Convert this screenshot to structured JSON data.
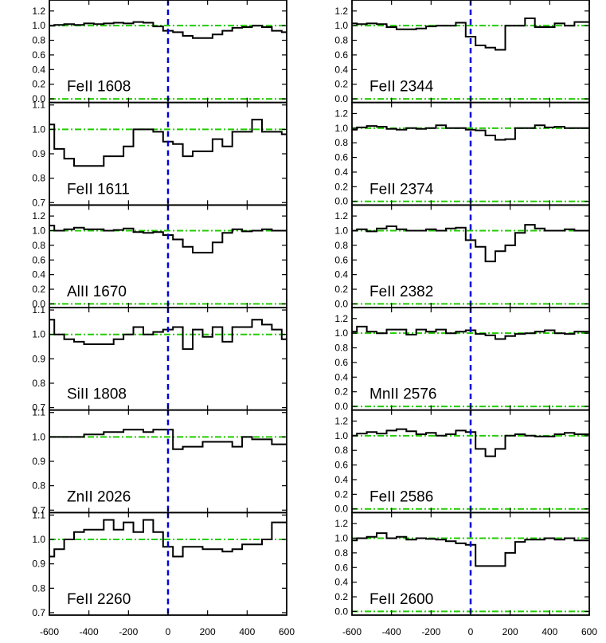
{
  "colors": {
    "data_line": "#000000",
    "axes": "#000000",
    "continuum_line": "#22cc00",
    "zero_velocity_line": "#0000dd"
  },
  "chart_data": {
    "type": "line",
    "layout": "2 columns x 6 rows of stacked panels",
    "line_style": "step",
    "xlim": [
      -600,
      600
    ],
    "x_ticks": [
      "-600",
      "-400",
      "-200",
      "0",
      "200",
      "400",
      "600"
    ],
    "reference_lines": {
      "vertical_dashed_x": 0,
      "horizontal_dash_dot_y": [
        0.0,
        1.0
      ]
    },
    "panels": [
      {
        "label": "FeII 1608",
        "column": "left",
        "ylim": [
          -0.05,
          1.35
        ],
        "y_ticks": [
          "0.0",
          "0.2",
          "0.4",
          "0.6",
          "0.8",
          "1.0",
          "1.2"
        ],
        "x": [
          -600,
          -550,
          -500,
          -450,
          -400,
          -350,
          -300,
          -250,
          -200,
          -150,
          -100,
          -50,
          0,
          50,
          100,
          150,
          200,
          250,
          300,
          350,
          400,
          450,
          500,
          550,
          600
        ],
        "y": [
          1.0,
          1.01,
          1.02,
          1.01,
          1.03,
          1.02,
          1.03,
          1.04,
          1.03,
          1.05,
          1.04,
          0.99,
          0.93,
          0.91,
          0.86,
          0.83,
          0.83,
          0.88,
          0.93,
          0.97,
          0.98,
          1.0,
          0.98,
          0.93,
          0.91
        ]
      },
      {
        "label": "FeII 1611",
        "column": "left",
        "ylim": [
          0.69,
          1.11
        ],
        "y_ticks": [
          "0.7",
          "0.8",
          "0.9",
          "1.0",
          "1.1"
        ],
        "x": [
          -600,
          -550,
          -500,
          -450,
          -400,
          -350,
          -300,
          -250,
          -200,
          -150,
          -100,
          -50,
          0,
          50,
          100,
          150,
          200,
          250,
          300,
          350,
          400,
          450,
          500,
          550,
          600
        ],
        "y": [
          1.02,
          0.92,
          0.88,
          0.85,
          0.85,
          0.85,
          0.89,
          0.89,
          0.93,
          1.0,
          1.0,
          0.99,
          0.95,
          0.94,
          0.89,
          0.91,
          0.91,
          0.96,
          0.93,
          0.99,
          0.99,
          1.04,
          0.99,
          0.99,
          0.98
        ]
      },
      {
        "label": "AlII 1670",
        "column": "left",
        "ylim": [
          -0.05,
          1.35
        ],
        "y_ticks": [
          "0.0",
          "0.2",
          "0.4",
          "0.6",
          "0.8",
          "1.0",
          "1.2"
        ],
        "x": [
          -600,
          -550,
          -500,
          -450,
          -400,
          -350,
          -300,
          -250,
          -200,
          -150,
          -100,
          -50,
          0,
          50,
          100,
          150,
          200,
          250,
          300,
          350,
          400,
          450,
          500,
          550,
          600
        ],
        "y": [
          1.07,
          1.0,
          1.02,
          1.04,
          1.02,
          1.02,
          1.0,
          1.01,
          1.03,
          0.98,
          0.97,
          0.98,
          0.94,
          0.88,
          0.78,
          0.7,
          0.7,
          0.84,
          0.97,
          1.02,
          0.99,
          1.0,
          1.02,
          1.0,
          1.0
        ]
      },
      {
        "label": "SiII 1808",
        "column": "left",
        "ylim": [
          0.69,
          1.11
        ],
        "y_ticks": [
          "0.7",
          "0.8",
          "0.9",
          "1.0",
          "1.1"
        ],
        "x": [
          -600,
          -550,
          -500,
          -450,
          -400,
          -350,
          -300,
          -250,
          -200,
          -150,
          -100,
          -50,
          0,
          50,
          100,
          150,
          200,
          250,
          300,
          350,
          400,
          450,
          500,
          550,
          600
        ],
        "y": [
          1.06,
          1.0,
          0.98,
          0.97,
          0.96,
          0.96,
          0.96,
          0.98,
          1.0,
          1.03,
          1.0,
          1.01,
          1.02,
          1.03,
          0.94,
          1.02,
          0.99,
          1.03,
          0.97,
          1.03,
          1.03,
          1.06,
          1.04,
          1.02,
          0.98
        ]
      },
      {
        "label": "ZnII 2026",
        "column": "left",
        "ylim": [
          0.69,
          1.11
        ],
        "y_ticks": [
          "0.7",
          "0.8",
          "0.9",
          "1.0",
          "1.1"
        ],
        "x": [
          -600,
          -550,
          -500,
          -450,
          -400,
          -350,
          -300,
          -250,
          -200,
          -150,
          -100,
          -50,
          0,
          50,
          100,
          150,
          200,
          250,
          300,
          350,
          400,
          450,
          500,
          550,
          600
        ],
        "y": [
          1.0,
          1.0,
          1.0,
          1.0,
          1.01,
          1.01,
          1.02,
          1.02,
          1.03,
          1.03,
          1.02,
          1.03,
          1.03,
          0.95,
          0.96,
          0.96,
          0.98,
          0.98,
          0.98,
          0.96,
          1.0,
          0.99,
          0.99,
          0.97,
          0.97
        ]
      },
      {
        "label": "FeII 2260",
        "column": "left",
        "ylim": [
          0.69,
          1.11
        ],
        "y_ticks": [
          "0.7",
          "0.8",
          "0.9",
          "1.0",
          "1.1"
        ],
        "x": [
          -600,
          -550,
          -500,
          -450,
          -400,
          -350,
          -300,
          -250,
          -200,
          -150,
          -100,
          -50,
          0,
          50,
          100,
          150,
          200,
          250,
          300,
          350,
          400,
          450,
          500,
          550,
          600
        ],
        "y": [
          0.93,
          0.96,
          1.0,
          1.03,
          1.04,
          1.04,
          1.08,
          1.04,
          1.07,
          1.03,
          1.08,
          1.03,
          0.97,
          0.93,
          0.97,
          0.97,
          0.96,
          0.96,
          0.95,
          0.96,
          0.98,
          0.98,
          1.0,
          1.07,
          1.07
        ]
      },
      {
        "label": "FeII 2344",
        "column": "right",
        "ylim": [
          -0.05,
          1.35
        ],
        "y_ticks": [
          "0.0",
          "0.2",
          "0.4",
          "0.6",
          "0.8",
          "1.0",
          "1.2"
        ],
        "x": [
          -600,
          -550,
          -500,
          -450,
          -400,
          -350,
          -300,
          -250,
          -200,
          -150,
          -100,
          -50,
          0,
          50,
          100,
          150,
          200,
          250,
          300,
          350,
          400,
          450,
          500,
          550,
          600
        ],
        "y": [
          1.03,
          1.02,
          1.03,
          1.02,
          0.98,
          0.95,
          0.95,
          0.96,
          0.99,
          1.0,
          1.0,
          1.04,
          0.85,
          0.73,
          0.7,
          0.67,
          1.0,
          1.0,
          1.1,
          0.98,
          0.98,
          1.03,
          1.0,
          1.05,
          1.05
        ]
      },
      {
        "label": "FeII 2374",
        "column": "right",
        "ylim": [
          -0.05,
          1.35
        ],
        "y_ticks": [
          "0.0",
          "0.2",
          "0.4",
          "0.6",
          "0.8",
          "1.0",
          "1.2"
        ],
        "x": [
          -600,
          -550,
          -500,
          -450,
          -400,
          -350,
          -300,
          -250,
          -200,
          -150,
          -100,
          -50,
          0,
          50,
          100,
          150,
          200,
          250,
          300,
          350,
          400,
          450,
          500,
          550,
          600
        ],
        "y": [
          0.98,
          1.01,
          1.03,
          1.02,
          0.99,
          0.98,
          1.0,
          0.99,
          1.0,
          1.04,
          1.0,
          1.0,
          0.98,
          0.97,
          0.9,
          0.84,
          0.85,
          1.0,
          1.0,
          1.04,
          1.01,
          1.02,
          1.0,
          1.0,
          1.0
        ]
      },
      {
        "label": "FeII 2382",
        "column": "right",
        "ylim": [
          -0.05,
          1.35
        ],
        "y_ticks": [
          "0.0",
          "0.2",
          "0.4",
          "0.6",
          "0.8",
          "1.0",
          "1.2"
        ],
        "x": [
          -600,
          -550,
          -500,
          -450,
          -400,
          -350,
          -300,
          -250,
          -200,
          -150,
          -100,
          -50,
          0,
          50,
          100,
          150,
          200,
          250,
          300,
          350,
          400,
          450,
          500,
          550,
          600
        ],
        "y": [
          1.0,
          1.02,
          0.99,
          1.03,
          1.06,
          1.02,
          1.0,
          1.0,
          1.02,
          1.0,
          1.03,
          1.04,
          0.87,
          0.78,
          0.58,
          0.72,
          0.8,
          0.97,
          1.08,
          1.03,
          1.0,
          1.0,
          1.02,
          1.0,
          1.0
        ]
      },
      {
        "label": "MnII 2576",
        "column": "right",
        "ylim": [
          -0.05,
          1.35
        ],
        "y_ticks": [
          "0.0",
          "0.2",
          "0.4",
          "0.6",
          "0.8",
          "1.0",
          "1.2"
        ],
        "x": [
          -600,
          -550,
          -500,
          -450,
          -400,
          -350,
          -300,
          -250,
          -200,
          -150,
          -100,
          -50,
          0,
          50,
          100,
          150,
          200,
          250,
          300,
          350,
          400,
          450,
          500,
          550,
          600
        ],
        "y": [
          1.02,
          1.09,
          1.02,
          1.0,
          1.05,
          1.05,
          0.98,
          1.05,
          1.02,
          1.05,
          1.0,
          1.02,
          1.04,
          0.99,
          0.97,
          0.92,
          0.96,
          0.99,
          1.0,
          1.02,
          1.04,
          1.0,
          0.99,
          1.02,
          1.02
        ]
      },
      {
        "label": "FeII 2586",
        "column": "right",
        "ylim": [
          -0.05,
          1.35
        ],
        "y_ticks": [
          "0.0",
          "0.2",
          "0.4",
          "0.6",
          "0.8",
          "1.0",
          "1.2"
        ],
        "x": [
          -600,
          -550,
          -500,
          -450,
          -400,
          -350,
          -300,
          -250,
          -200,
          -150,
          -100,
          -50,
          0,
          50,
          100,
          150,
          200,
          250,
          300,
          350,
          400,
          450,
          500,
          550,
          600
        ],
        "y": [
          1.0,
          1.03,
          1.05,
          1.03,
          1.07,
          1.09,
          1.06,
          1.02,
          1.04,
          1.0,
          1.02,
          1.07,
          1.05,
          0.82,
          0.72,
          0.82,
          1.0,
          1.02,
          1.0,
          0.99,
          0.99,
          1.02,
          1.04,
          1.02,
          1.02
        ]
      },
      {
        "label": "FeII 2600",
        "column": "right",
        "ylim": [
          -0.05,
          1.35
        ],
        "y_ticks": [
          "0.0",
          "0.2",
          "0.4",
          "0.6",
          "0.8",
          "1.0",
          "1.2"
        ],
        "x": [
          -600,
          -550,
          -500,
          -450,
          -400,
          -350,
          -300,
          -250,
          -200,
          -150,
          -100,
          -50,
          0,
          50,
          100,
          150,
          200,
          250,
          300,
          350,
          400,
          450,
          500,
          550,
          600
        ],
        "y": [
          0.97,
          1.0,
          1.02,
          1.07,
          1.0,
          1.02,
          0.98,
          1.0,
          0.99,
          0.98,
          0.96,
          0.93,
          0.91,
          0.62,
          0.62,
          0.62,
          0.8,
          0.95,
          0.98,
          0.98,
          1.0,
          0.98,
          1.0,
          0.97,
          0.97
        ]
      }
    ]
  }
}
